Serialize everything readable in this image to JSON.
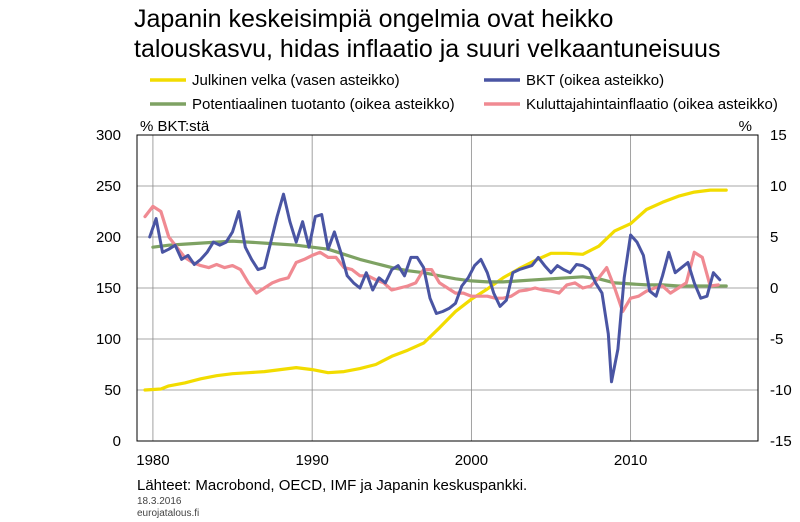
{
  "title_line1": "Japanin keskeisimpiä ongelmia ovat heikko",
  "title_line2": "talouskasvu, hidas inflaatio ja suuri velkaantuneisuus",
  "source": "Lähteet: Macrobond, OECD, IMF ja Japanin keskuspankki.",
  "date": "18.3.2016",
  "site": "eurojatalous.fi",
  "chart_data": {
    "type": "line",
    "left_axis": {
      "label": "% BKT:stä",
      "range": [
        0,
        300
      ],
      "ticks": [
        0,
        50,
        100,
        150,
        200,
        250,
        300
      ]
    },
    "right_axis": {
      "label": "%",
      "range": [
        -15,
        15
      ],
      "ticks": [
        -15,
        -10,
        -5,
        0,
        5,
        10,
        15
      ]
    },
    "x_axis": {
      "range": [
        1979,
        2018
      ],
      "ticks": [
        1980,
        1990,
        2000,
        2010
      ]
    },
    "grid": true,
    "legend_placement": "top",
    "series": [
      {
        "name": "Julkinen velka (vasen asteikko)",
        "axis": "left",
        "color": "#f2dc00",
        "points": [
          [
            1979.5,
            50
          ],
          [
            1980.5,
            51
          ],
          [
            1981,
            54
          ],
          [
            1982,
            57
          ],
          [
            1983,
            61
          ],
          [
            1984,
            64
          ],
          [
            1985,
            66
          ],
          [
            1986,
            67
          ],
          [
            1987,
            68
          ],
          [
            1988,
            70
          ],
          [
            1989,
            72
          ],
          [
            1990,
            70
          ],
          [
            1991,
            67
          ],
          [
            1992,
            68
          ],
          [
            1993,
            71
          ],
          [
            1994,
            75
          ],
          [
            1995,
            83
          ],
          [
            1996,
            89
          ],
          [
            1997,
            96
          ],
          [
            1998,
            111
          ],
          [
            1999,
            127
          ],
          [
            2000,
            139
          ],
          [
            2001,
            149
          ],
          [
            2002,
            160
          ],
          [
            2003,
            169
          ],
          [
            2004,
            177
          ],
          [
            2005,
            184
          ],
          [
            2006,
            184
          ],
          [
            2007,
            183
          ],
          [
            2008,
            191
          ],
          [
            2009,
            206
          ],
          [
            2010,
            213
          ],
          [
            2011,
            227
          ],
          [
            2012,
            234
          ],
          [
            2013,
            240
          ],
          [
            2014,
            244
          ],
          [
            2015,
            246
          ],
          [
            2016,
            246
          ]
        ]
      },
      {
        "name": "BKT (oikea asteikko)",
        "axis": "right",
        "color": "#4a55a3",
        "points": [
          [
            1979.8,
            5
          ],
          [
            1980.2,
            6.8
          ],
          [
            1980.6,
            3.5
          ],
          [
            1981,
            3.8
          ],
          [
            1981.4,
            4.2
          ],
          [
            1981.8,
            2.8
          ],
          [
            1982.2,
            3.2
          ],
          [
            1982.6,
            2.3
          ],
          [
            1983,
            2.8
          ],
          [
            1983.4,
            3.5
          ],
          [
            1983.8,
            4.5
          ],
          [
            1984.2,
            4.2
          ],
          [
            1984.6,
            4.5
          ],
          [
            1985,
            5.5
          ],
          [
            1985.4,
            7.5
          ],
          [
            1985.8,
            4
          ],
          [
            1986.2,
            2.8
          ],
          [
            1986.6,
            1.8
          ],
          [
            1987,
            2
          ],
          [
            1987.4,
            4.5
          ],
          [
            1987.8,
            7
          ],
          [
            1988.2,
            9.2
          ],
          [
            1988.6,
            6.5
          ],
          [
            1989,
            4.5
          ],
          [
            1989.4,
            6.5
          ],
          [
            1989.8,
            4
          ],
          [
            1990.2,
            7
          ],
          [
            1990.6,
            7.2
          ],
          [
            1991,
            3.8
          ],
          [
            1991.4,
            5.5
          ],
          [
            1991.8,
            3.5
          ],
          [
            1992.2,
            1.2
          ],
          [
            1992.6,
            0.5
          ],
          [
            1993,
            0
          ],
          [
            1993.4,
            1.5
          ],
          [
            1993.8,
            -0.2
          ],
          [
            1994.2,
            1
          ],
          [
            1994.6,
            0.5
          ],
          [
            1995,
            1.8
          ],
          [
            1995.4,
            2.2
          ],
          [
            1995.8,
            1.2
          ],
          [
            1996.2,
            3
          ],
          [
            1996.6,
            3
          ],
          [
            1997,
            2
          ],
          [
            1997.4,
            -1
          ],
          [
            1997.8,
            -2.5
          ],
          [
            1998.2,
            -2.3
          ],
          [
            1998.6,
            -2
          ],
          [
            1999,
            -1.5
          ],
          [
            1999.4,
            0.2
          ],
          [
            1999.8,
            1
          ],
          [
            2000.2,
            2.2
          ],
          [
            2000.6,
            2.8
          ],
          [
            2001,
            1.5
          ],
          [
            2001.4,
            -0.5
          ],
          [
            2001.8,
            -1.8
          ],
          [
            2002.2,
            -1.2
          ],
          [
            2002.6,
            1.5
          ],
          [
            2003,
            1.8
          ],
          [
            2003.4,
            2
          ],
          [
            2003.8,
            2.2
          ],
          [
            2004.2,
            3
          ],
          [
            2004.6,
            2.2
          ],
          [
            2005,
            1.5
          ],
          [
            2005.4,
            2.2
          ],
          [
            2005.8,
            1.8
          ],
          [
            2006.2,
            1.5
          ],
          [
            2006.6,
            2.3
          ],
          [
            2007,
            2.2
          ],
          [
            2007.4,
            1.8
          ],
          [
            2007.8,
            0.5
          ],
          [
            2008.2,
            -0.5
          ],
          [
            2008.6,
            -4.5
          ],
          [
            2008.8,
            -9.2
          ],
          [
            2009.2,
            -6
          ],
          [
            2009.6,
            1
          ],
          [
            2010,
            5.2
          ],
          [
            2010.4,
            4.5
          ],
          [
            2010.8,
            3.2
          ],
          [
            2011.2,
            -0.3
          ],
          [
            2011.6,
            -0.8
          ],
          [
            2012,
            1.2
          ],
          [
            2012.4,
            3.5
          ],
          [
            2012.8,
            1.5
          ],
          [
            2013.2,
            2
          ],
          [
            2013.6,
            2.5
          ],
          [
            2014,
            0.5
          ],
          [
            2014.4,
            -1
          ],
          [
            2014.8,
            -0.8
          ],
          [
            2015.2,
            1.5
          ],
          [
            2015.6,
            0.8
          ]
        ]
      },
      {
        "name": "Potentiaalinen tuotanto (oikea asteikko)",
        "axis": "right",
        "color": "#7ea263",
        "points": [
          [
            1980,
            4
          ],
          [
            1981,
            4.2
          ],
          [
            1982,
            4.3
          ],
          [
            1983,
            4.4
          ],
          [
            1984,
            4.5
          ],
          [
            1985,
            4.6
          ],
          [
            1986,
            4.5
          ],
          [
            1987,
            4.4
          ],
          [
            1988,
            4.3
          ],
          [
            1989,
            4.2
          ],
          [
            1990,
            4
          ],
          [
            1991,
            3.8
          ],
          [
            1992,
            3.3
          ],
          [
            1993,
            2.8
          ],
          [
            1994,
            2.4
          ],
          [
            1995,
            2
          ],
          [
            1996,
            1.7
          ],
          [
            1997,
            1.5
          ],
          [
            1998,
            1.2
          ],
          [
            1999,
            0.9
          ],
          [
            2000,
            0.7
          ],
          [
            2001,
            0.6
          ],
          [
            2002,
            0.6
          ],
          [
            2003,
            0.7
          ],
          [
            2004,
            0.8
          ],
          [
            2005,
            0.9
          ],
          [
            2006,
            1
          ],
          [
            2007,
            1.1
          ],
          [
            2008,
            0.9
          ],
          [
            2009,
            0.5
          ],
          [
            2010,
            0.4
          ],
          [
            2011,
            0.3
          ],
          [
            2012,
            0.3
          ],
          [
            2013,
            0.2
          ],
          [
            2014,
            0.2
          ],
          [
            2015,
            0.2
          ],
          [
            2016,
            0.2
          ]
        ]
      },
      {
        "name": "Kuluttajahintainflaatio (oikea asteikko)",
        "axis": "right",
        "color": "#f08a92",
        "points": [
          [
            1979.5,
            7
          ],
          [
            1980,
            8
          ],
          [
            1980.5,
            7.5
          ],
          [
            1981,
            5
          ],
          [
            1981.5,
            4
          ],
          [
            1982,
            3
          ],
          [
            1982.5,
            2.5
          ],
          [
            1983,
            2.2
          ],
          [
            1983.5,
            2
          ],
          [
            1984,
            2.3
          ],
          [
            1984.5,
            2
          ],
          [
            1985,
            2.2
          ],
          [
            1985.5,
            1.8
          ],
          [
            1986,
            0.5
          ],
          [
            1986.5,
            -0.5
          ],
          [
            1987,
            0
          ],
          [
            1987.5,
            0.5
          ],
          [
            1988,
            0.8
          ],
          [
            1988.5,
            1
          ],
          [
            1989,
            2.5
          ],
          [
            1989.5,
            2.8
          ],
          [
            1990,
            3.2
          ],
          [
            1990.5,
            3.5
          ],
          [
            1991,
            3
          ],
          [
            1991.5,
            3
          ],
          [
            1992,
            2
          ],
          [
            1992.5,
            1.8
          ],
          [
            1993,
            1.2
          ],
          [
            1993.5,
            1.2
          ],
          [
            1994,
            0.8
          ],
          [
            1994.5,
            0.5
          ],
          [
            1995,
            -0.2
          ],
          [
            1995.5,
            0
          ],
          [
            1996,
            0.2
          ],
          [
            1996.5,
            0.5
          ],
          [
            1997,
            1.8
          ],
          [
            1997.5,
            1.8
          ],
          [
            1998,
            0.5
          ],
          [
            1998.5,
            0
          ],
          [
            1999,
            -0.5
          ],
          [
            1999.5,
            -0.5
          ],
          [
            2000,
            -0.8
          ],
          [
            2000.5,
            -0.8
          ],
          [
            2001,
            -0.8
          ],
          [
            2001.5,
            -1
          ],
          [
            2002,
            -1
          ],
          [
            2002.5,
            -0.8
          ],
          [
            2003,
            -0.3
          ],
          [
            2003.5,
            -0.2
          ],
          [
            2004,
            0
          ],
          [
            2004.5,
            -0.2
          ],
          [
            2005,
            -0.3
          ],
          [
            2005.5,
            -0.5
          ],
          [
            2006,
            0.3
          ],
          [
            2006.5,
            0.5
          ],
          [
            2007,
            0
          ],
          [
            2007.5,
            0.2
          ],
          [
            2008,
            1
          ],
          [
            2008.5,
            2
          ],
          [
            2009,
            0
          ],
          [
            2009.5,
            -2.3
          ],
          [
            2010,
            -1
          ],
          [
            2010.5,
            -0.8
          ],
          [
            2011,
            -0.3
          ],
          [
            2011.5,
            0
          ],
          [
            2012,
            0.2
          ],
          [
            2012.5,
            -0.5
          ],
          [
            2013,
            0
          ],
          [
            2013.5,
            0.5
          ],
          [
            2014,
            3.5
          ],
          [
            2014.5,
            3
          ],
          [
            2015,
            0.2
          ],
          [
            2015.5,
            0.3
          ]
        ]
      }
    ]
  }
}
